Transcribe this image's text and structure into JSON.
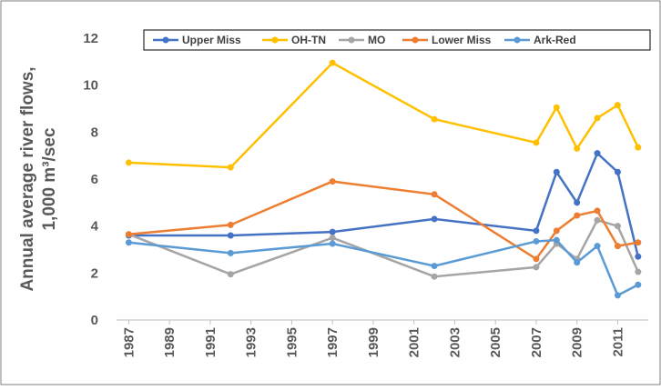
{
  "chart_data": {
    "type": "line",
    "y_label": [
      "Annual average river flows,",
      "1,000 m³/sec"
    ],
    "x": [
      1987,
      1992,
      1997,
      2002,
      2007,
      2008,
      2009,
      2010,
      2011,
      2012
    ],
    "series": [
      {
        "name": "Upper Miss",
        "color": "#4472c4",
        "values": [
          3.6,
          3.6,
          3.75,
          4.3,
          3.8,
          6.3,
          5.0,
          7.1,
          6.3,
          2.7
        ]
      },
      {
        "name": "OH-TN",
        "color": "#ffc000",
        "values": [
          6.7,
          6.5,
          10.95,
          8.55,
          7.55,
          9.05,
          7.3,
          8.6,
          9.15,
          7.35
        ]
      },
      {
        "name": "MO",
        "color": "#a5a5a5",
        "values": [
          3.65,
          1.95,
          3.5,
          1.85,
          2.25,
          3.25,
          2.6,
          4.25,
          4.0,
          2.05
        ]
      },
      {
        "name": "Lower Miss",
        "color": "#ed7d31",
        "values": [
          3.65,
          4.05,
          5.9,
          5.35,
          2.6,
          3.8,
          4.45,
          4.65,
          3.15,
          3.3
        ]
      },
      {
        "name": "Ark-Red",
        "color": "#5b9bd5",
        "values": [
          3.3,
          2.85,
          3.25,
          2.3,
          3.35,
          3.4,
          2.45,
          3.15,
          1.05,
          1.5
        ]
      }
    ],
    "xlim": [
      1986.4,
      2012.5
    ],
    "xticks": [
      1987,
      1989,
      1991,
      1993,
      1995,
      1997,
      1999,
      2001,
      2003,
      2005,
      2007,
      2009,
      2011
    ],
    "ylim": [
      0,
      12
    ],
    "yticks": [
      0,
      2,
      4,
      6,
      8,
      10,
      12
    ],
    "grid": false,
    "legend": "top"
  }
}
